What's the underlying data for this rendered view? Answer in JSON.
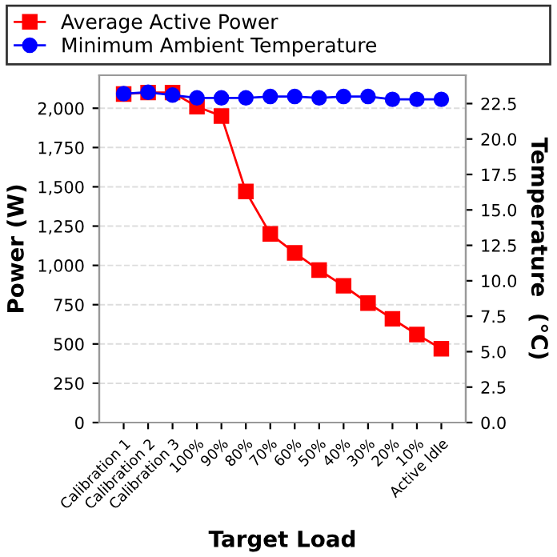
{
  "chart_data": {
    "type": "line",
    "xlabel": "Target Load",
    "ylabel": "Power (W)",
    "y2label": "Temperature  (°C)",
    "categories": [
      "Calibration 1",
      "Calibration 2",
      "Calibration 3",
      "100%",
      "90%",
      "80%",
      "70%",
      "60%",
      "50%",
      "40%",
      "30%",
      "20%",
      "10%",
      "Active Idle"
    ],
    "series": [
      {
        "name": "Average Active Power",
        "color": "#ff0000",
        "marker": "square",
        "values": [
          2090,
          2100,
          2100,
          2010,
          1950,
          1470,
          1200,
          1080,
          970,
          870,
          760,
          660,
          560,
          470
        ]
      },
      {
        "name": "Minimum Ambient Temperature",
        "color": "#0000ff",
        "marker": "circle",
        "axis": "y2",
        "values": [
          23.2,
          23.3,
          23.1,
          22.9,
          22.9,
          22.9,
          23.0,
          23.0,
          22.9,
          23.0,
          23.0,
          22.8,
          22.8,
          22.8
        ]
      }
    ],
    "ylim": [
      0,
      2210
    ],
    "yticks": [
      {
        "value": 0,
        "label": "0"
      },
      {
        "value": 250,
        "label": "250"
      },
      {
        "value": 500,
        "label": "500"
      },
      {
        "value": 750,
        "label": "750"
      },
      {
        "value": 1000,
        "label": "1,000"
      },
      {
        "value": 1250,
        "label": "1,250"
      },
      {
        "value": 1500,
        "label": "1,500"
      },
      {
        "value": 1750,
        "label": "1,750"
      },
      {
        "value": 2000,
        "label": "2,000"
      }
    ],
    "y2lim": [
      0,
      24.5
    ],
    "y2ticks": [
      {
        "value": 0,
        "label": "0.0"
      },
      {
        "value": 2.5,
        "label": "2.5"
      },
      {
        "value": 5,
        "label": "5.0"
      },
      {
        "value": 7.5,
        "label": "7.5"
      },
      {
        "value": 10,
        "label": "10.0"
      },
      {
        "value": 12.5,
        "label": "12.5"
      },
      {
        "value": 15,
        "label": "15.0"
      },
      {
        "value": 17.5,
        "label": "17.5"
      },
      {
        "value": 20,
        "label": "20.0"
      },
      {
        "value": 22.5,
        "label": "22.5"
      }
    ],
    "grid": "y",
    "legend": "top",
    "line_style": "solid"
  }
}
